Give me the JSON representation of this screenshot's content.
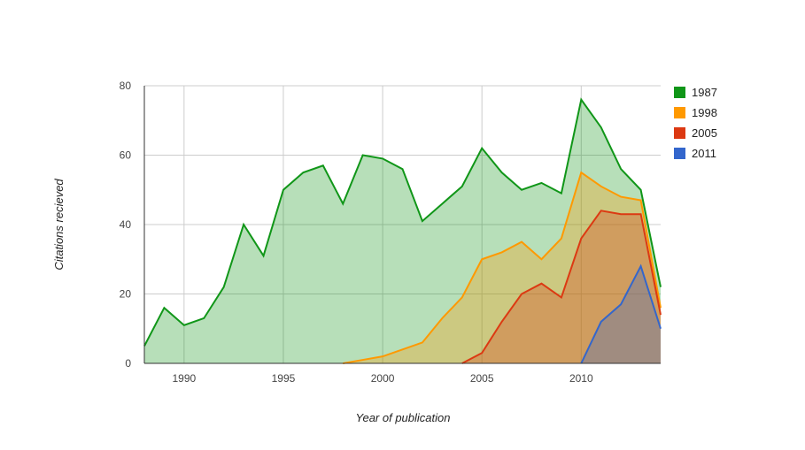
{
  "chart_data": {
    "type": "area",
    "title": "",
    "xlabel": "Year of publication",
    "ylabel": "Citations recieved",
    "xlim": [
      1988,
      2014
    ],
    "ylim": [
      0,
      80
    ],
    "xticks": [
      1990,
      1995,
      2000,
      2005,
      2010
    ],
    "yticks": [
      0,
      20,
      40,
      60,
      80
    ],
    "grid": true,
    "legend_position": "right",
    "series": [
      {
        "name": "1987",
        "color": "#109618",
        "x": [
          1988,
          1989,
          1990,
          1991,
          1992,
          1993,
          1994,
          1995,
          1996,
          1997,
          1998,
          1999,
          2000,
          2001,
          2002,
          2003,
          2004,
          2005,
          2006,
          2007,
          2008,
          2009,
          2010,
          2011,
          2012,
          2013,
          2014
        ],
        "values": [
          5,
          16,
          11,
          13,
          22,
          40,
          31,
          50,
          55,
          57,
          46,
          60,
          59,
          56,
          41,
          46,
          51,
          62,
          55,
          50,
          52,
          49,
          76,
          68,
          56,
          50,
          22
        ]
      },
      {
        "name": "1998",
        "color": "#FF9900",
        "x": [
          1998,
          1999,
          2000,
          2001,
          2002,
          2003,
          2004,
          2005,
          2006,
          2007,
          2008,
          2009,
          2010,
          2011,
          2012,
          2013,
          2014
        ],
        "values": [
          0,
          1,
          2,
          4,
          6,
          13,
          19,
          30,
          32,
          35,
          30,
          36,
          55,
          51,
          48,
          47,
          16
        ]
      },
      {
        "name": "2005",
        "color": "#DC3912",
        "x": [
          2004,
          2005,
          2006,
          2007,
          2008,
          2009,
          2010,
          2011,
          2012,
          2013,
          2014
        ],
        "values": [
          0,
          3,
          12,
          20,
          23,
          19,
          36,
          44,
          43,
          43,
          14
        ]
      },
      {
        "name": "2011",
        "color": "#3366CC",
        "x": [
          2010,
          2011,
          2012,
          2013,
          2014
        ],
        "values": [
          0,
          12,
          17,
          28,
          10
        ]
      }
    ]
  }
}
